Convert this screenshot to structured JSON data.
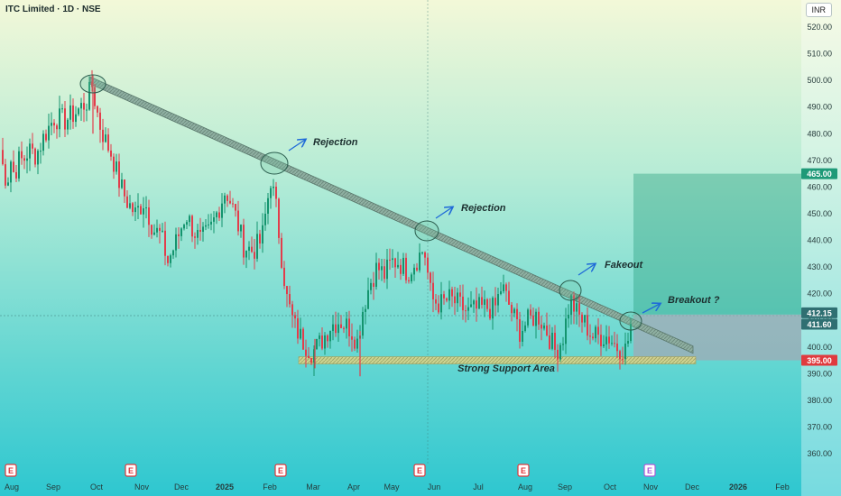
{
  "header": {
    "title": "ITC Limited · 1D · NSE",
    "currency": "INR"
  },
  "chart_data": {
    "type": "candlestick",
    "ylim": [
      355,
      525
    ],
    "y_ticks": [
      "360.00",
      "370.00",
      "380.00",
      "390.00",
      "400.00",
      "410.00",
      "420.00",
      "430.00",
      "440.00",
      "450.00",
      "460.00",
      "470.00",
      "480.00",
      "490.00",
      "500.00",
      "510.00",
      "520.00"
    ],
    "x_ticks": [
      "Aug",
      "Sep",
      "Oct",
      "Nov",
      "Dec",
      "2025",
      "Feb",
      "Mar",
      "Apr",
      "May",
      "Jun",
      "Jul",
      "Aug",
      "Sep",
      "Oct",
      "Nov",
      "Dec",
      "2026",
      "Feb"
    ],
    "price_labels": [
      {
        "value": 465.0,
        "text": "465.00",
        "color": "#1f9a78"
      },
      {
        "value": 412.15,
        "text": "412.15",
        "color": "#2f6f72"
      },
      {
        "value": 411.6,
        "text": "411.60",
        "color": "#2f6f72"
      },
      {
        "value": 395.0,
        "text": "395.00",
        "color": "#e03a3e"
      }
    ],
    "annotations": [
      {
        "text": "Rejection",
        "ref": "rejection-1"
      },
      {
        "text": "Rejection",
        "ref": "rejection-2"
      },
      {
        "text": "Fakeout",
        "ref": "fakeout"
      },
      {
        "text": "Breakout ?",
        "ref": "breakout"
      },
      {
        "text": "Strong Support Area",
        "ref": "support"
      }
    ],
    "trendline": {
      "start_price": 500,
      "end_price": 399
    },
    "support_level": 395,
    "target_level": 465,
    "current_price": 412.15,
    "event_markers": [
      "E",
      "E",
      "E",
      "E",
      "E",
      "E"
    ],
    "series": [
      {
        "anchors": [
          [
            0,
            474
          ],
          [
            4,
            466
          ],
          [
            8,
            462
          ],
          [
            12,
            470
          ],
          [
            16,
            464
          ],
          [
            20,
            470
          ],
          [
            26,
            470
          ],
          [
            32,
            474
          ],
          [
            40,
            472
          ],
          [
            50,
            480
          ],
          [
            60,
            486
          ],
          [
            72,
            485
          ],
          [
            84,
            488
          ],
          [
            96,
            492
          ],
          [
            102,
            498
          ],
          [
            110,
            484
          ],
          [
            116,
            478
          ],
          [
            124,
            472
          ],
          [
            132,
            462
          ],
          [
            140,
            455
          ],
          [
            150,
            450
          ],
          [
            160,
            455
          ],
          [
            170,
            444
          ],
          [
            178,
            442
          ],
          [
            186,
            432
          ],
          [
            196,
            440
          ],
          [
            206,
            450
          ],
          [
            214,
            444
          ],
          [
            222,
            440
          ],
          [
            232,
            443
          ],
          [
            240,
            450
          ],
          [
            250,
            459
          ],
          [
            256,
            454
          ],
          [
            262,
            448
          ],
          [
            270,
            438
          ],
          [
            280,
            436
          ],
          [
            290,
            440
          ],
          [
            300,
            463
          ],
          [
            306,
            452
          ],
          [
            312,
            434
          ],
          [
            318,
            418
          ],
          [
            326,
            408
          ],
          [
            336,
            402
          ],
          [
            346,
            398
          ],
          [
            356,
            402
          ],
          [
            366,
            408
          ],
          [
            376,
            410
          ],
          [
            388,
            407
          ],
          [
            396,
            402
          ],
          [
            402,
            414
          ],
          [
            410,
            424
          ],
          [
            418,
            430
          ],
          [
            426,
            427
          ],
          [
            434,
            432
          ],
          [
            442,
            432
          ],
          [
            452,
            428
          ],
          [
            460,
            432
          ],
          [
            470,
            437
          ],
          [
            478,
            418
          ],
          [
            488,
            416
          ],
          [
            498,
            418
          ],
          [
            508,
            416
          ],
          [
            518,
            413
          ],
          [
            528,
            414
          ],
          [
            538,
            415
          ],
          [
            548,
            414
          ],
          [
            556,
            423
          ],
          [
            566,
            414
          ],
          [
            576,
            406
          ],
          [
            586,
            410
          ],
          [
            596,
            412
          ],
          [
            606,
            406
          ],
          [
            616,
            398
          ],
          [
            624,
            404
          ],
          [
            632,
            418
          ],
          [
            640,
            412
          ],
          [
            648,
            409
          ],
          [
            656,
            404
          ],
          [
            664,
            404
          ],
          [
            674,
            404
          ],
          [
            684,
            400
          ],
          [
            694,
            399
          ],
          [
            700,
            410
          ]
        ]
      }
    ]
  }
}
